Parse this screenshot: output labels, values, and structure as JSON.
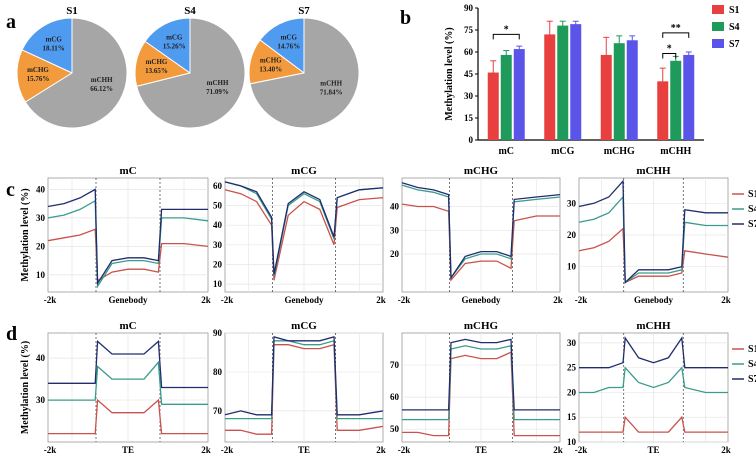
{
  "panels": {
    "a": "a",
    "b": "b",
    "c": "c",
    "d": "d"
  },
  "colors": {
    "S1": "#e8403f",
    "S4": "#1e9b5a",
    "S7": "#5a55e8",
    "mCG": "#4f9bf0",
    "mCHG": "#f39a3c",
    "mCHH": "#a6a6a6",
    "lineS1": "#c9524c",
    "lineS4": "#3a9c8a",
    "lineS7": "#1f2d6e"
  },
  "chart_data": [
    {
      "type": "pie",
      "panel": "a",
      "title": "S1",
      "slices": [
        {
          "label": "mCG",
          "value": 18.11,
          "text": "18.11%"
        },
        {
          "label": "mCHG",
          "value": 15.76,
          "text": "15.76%"
        },
        {
          "label": "mCHH",
          "value": 66.12,
          "text": "66.12%"
        }
      ]
    },
    {
      "type": "pie",
      "panel": "a",
      "title": "S4",
      "slices": [
        {
          "label": "mCG",
          "value": 15.26,
          "text": "15.26%"
        },
        {
          "label": "mCHG",
          "value": 13.65,
          "text": "13.65%"
        },
        {
          "label": "mCHH",
          "value": 71.09,
          "text": "71.09%"
        }
      ]
    },
    {
      "type": "pie",
      "panel": "a",
      "title": "S7",
      "slices": [
        {
          "label": "mCG",
          "value": 14.76,
          "text": "14.76%"
        },
        {
          "label": "mCHG",
          "value": 13.4,
          "text": "13.40%"
        },
        {
          "label": "mCHH",
          "value": 71.84,
          "text": "71.84%"
        }
      ]
    },
    {
      "type": "bar",
      "panel": "b",
      "categories": [
        "mC",
        "mCG",
        "mCHG",
        "mCHH"
      ],
      "ylabel": "Methylation level (%)",
      "ylim": [
        0,
        90
      ],
      "yticks": [
        0,
        15,
        30,
        45,
        60,
        75,
        90
      ],
      "legend": [
        "S1",
        "S4",
        "S7"
      ],
      "legend_position": "right",
      "series": [
        {
          "name": "S1",
          "values": [
            46,
            72,
            58,
            40
          ],
          "errors": [
            8,
            9,
            12,
            9
          ]
        },
        {
          "name": "S4",
          "values": [
            58,
            78,
            66,
            54
          ],
          "errors": [
            3,
            3,
            5,
            3
          ]
        },
        {
          "name": "S7",
          "values": [
            62,
            79,
            68,
            58
          ],
          "errors": [
            2,
            2,
            3,
            2
          ]
        }
      ],
      "significance": [
        {
          "category": "mC",
          "label": "*"
        },
        {
          "category": "mCHH",
          "label": "*"
        },
        {
          "category": "mCHH",
          "label": "**"
        }
      ]
    },
    {
      "type": "line",
      "panel": "c",
      "title": "mC",
      "ylabel": "Methylation level (%)",
      "xticks": [
        "-2k",
        "Genebody",
        "2k"
      ],
      "ylim": [
        4,
        44
      ],
      "yticks": [
        10,
        20,
        30,
        40
      ],
      "series": [
        {
          "name": "S1",
          "values": [
            22,
            23,
            24,
            26,
            8,
            11,
            12,
            12,
            11,
            21,
            21,
            20
          ]
        },
        {
          "name": "S4",
          "values": [
            30,
            31,
            33,
            36,
            6,
            14,
            15,
            15,
            14,
            30,
            30,
            29
          ]
        },
        {
          "name": "S7",
          "values": [
            34,
            35,
            37,
            40,
            7,
            15,
            16,
            16,
            15,
            33,
            33,
            33
          ]
        }
      ]
    },
    {
      "type": "line",
      "panel": "c",
      "title": "mCG",
      "xticks": [
        "-2k",
        "Genebody",
        "2k"
      ],
      "ylim": [
        6,
        64
      ],
      "yticks": [
        10,
        20,
        30,
        40,
        50,
        60
      ],
      "series": [
        {
          "name": "S1",
          "values": [
            58,
            56,
            52,
            40,
            12,
            45,
            52,
            48,
            30,
            49,
            53,
            54
          ]
        },
        {
          "name": "S4",
          "values": [
            62,
            60,
            56,
            43,
            14,
            50,
            56,
            52,
            33,
            54,
            58,
            59
          ]
        },
        {
          "name": "S7",
          "values": [
            62,
            60,
            57,
            44,
            15,
            51,
            57,
            53,
            34,
            54,
            58,
            59
          ]
        }
      ]
    },
    {
      "type": "line",
      "panel": "c",
      "title": "mCHG",
      "xticks": [
        "-2k",
        "Genebody",
        "2k"
      ],
      "ylim": [
        4,
        52
      ],
      "yticks": [
        20,
        30,
        40
      ],
      "series": [
        {
          "name": "S1",
          "values": [
            41,
            40,
            40,
            38,
            9,
            16,
            17,
            17,
            14,
            34,
            36,
            36
          ]
        },
        {
          "name": "S4",
          "values": [
            49,
            47,
            46,
            44,
            10,
            18,
            20,
            20,
            18,
            42,
            43,
            44
          ]
        },
        {
          "name": "S7",
          "values": [
            50,
            48,
            47,
            45,
            10,
            19,
            21,
            21,
            19,
            43,
            44,
            45
          ]
        }
      ]
    },
    {
      "type": "line",
      "panel": "c",
      "title": "mCHH",
      "xticks": [
        "-2k",
        "Genebody",
        "2k"
      ],
      "ylim": [
        2,
        38
      ],
      "yticks": [
        10,
        20,
        30
      ],
      "series": [
        {
          "name": "S1",
          "values": [
            15,
            16,
            18,
            22,
            5,
            7,
            7,
            7,
            8,
            15,
            14,
            13
          ]
        },
        {
          "name": "S4",
          "values": [
            24,
            25,
            27,
            32,
            5,
            8,
            8,
            8,
            9,
            24,
            23,
            23
          ]
        },
        {
          "name": "S7",
          "values": [
            29,
            30,
            32,
            37,
            5,
            9,
            9,
            9,
            10,
            28,
            27,
            27
          ]
        }
      ],
      "legend": [
        "S1",
        "S4",
        "S7"
      ]
    },
    {
      "type": "line",
      "panel": "d",
      "title": "mC",
      "ylabel": "Methylation level (%)",
      "xticks": [
        "-2k",
        "TE",
        "2k"
      ],
      "ylim": [
        20,
        46
      ],
      "yticks": [
        30,
        40
      ],
      "series": [
        {
          "name": "S1",
          "values": [
            22,
            22,
            22,
            22,
            30,
            27,
            27,
            27,
            30,
            22,
            22,
            22
          ]
        },
        {
          "name": "S4",
          "values": [
            30,
            30,
            30,
            30,
            38,
            35,
            35,
            35,
            39,
            29,
            29,
            29
          ]
        },
        {
          "name": "S7",
          "values": [
            34,
            34,
            34,
            34,
            44,
            41,
            41,
            41,
            44,
            33,
            33,
            33
          ]
        }
      ]
    },
    {
      "type": "line",
      "panel": "d",
      "title": "mCG",
      "xticks": [
        "-2k",
        "TE",
        "2k"
      ],
      "ylim": [
        62,
        90
      ],
      "yticks": [
        70,
        80,
        90
      ],
      "series": [
        {
          "name": "S1",
          "values": [
            65,
            65,
            64,
            64,
            87,
            87,
            86,
            86,
            87,
            65,
            65,
            66
          ]
        },
        {
          "name": "S4",
          "values": [
            68,
            68,
            68,
            68,
            88,
            88,
            87,
            87,
            88,
            68,
            68,
            68
          ]
        },
        {
          "name": "S7",
          "values": [
            69,
            70,
            69,
            69,
            89,
            88,
            88,
            88,
            89,
            69,
            69,
            70
          ]
        }
      ]
    },
    {
      "type": "line",
      "panel": "d",
      "title": "mCHG",
      "xticks": [
        "-2k",
        "TE",
        "2k"
      ],
      "ylim": [
        46,
        80
      ],
      "yticks": [
        50,
        60,
        70
      ],
      "series": [
        {
          "name": "S1",
          "values": [
            49,
            49,
            48,
            48,
            72,
            73,
            72,
            72,
            74,
            48,
            48,
            48
          ]
        },
        {
          "name": "S4",
          "values": [
            53,
            53,
            53,
            53,
            75,
            76,
            75,
            75,
            76,
            53,
            53,
            53
          ]
        },
        {
          "name": "S7",
          "values": [
            56,
            56,
            56,
            56,
            77,
            78,
            77,
            77,
            78,
            56,
            56,
            56
          ]
        }
      ]
    },
    {
      "type": "line",
      "panel": "d",
      "title": "mCHH",
      "xticks": [
        "-2k",
        "TE",
        "2k"
      ],
      "ylim": [
        10,
        32
      ],
      "yticks": [
        10,
        15,
        20,
        25,
        30
      ],
      "series": [
        {
          "name": "S1",
          "values": [
            12,
            12,
            12,
            12,
            15,
            12,
            12,
            12,
            15,
            12,
            12,
            12
          ]
        },
        {
          "name": "S4",
          "values": [
            20,
            20,
            21,
            21,
            25,
            22,
            21,
            22,
            25,
            21,
            20,
            20
          ]
        },
        {
          "name": "S7",
          "values": [
            25,
            25,
            25,
            26,
            31,
            27,
            26,
            27,
            31,
            25,
            25,
            25
          ]
        }
      ],
      "legend": [
        "S1",
        "S4",
        "S7"
      ]
    }
  ]
}
